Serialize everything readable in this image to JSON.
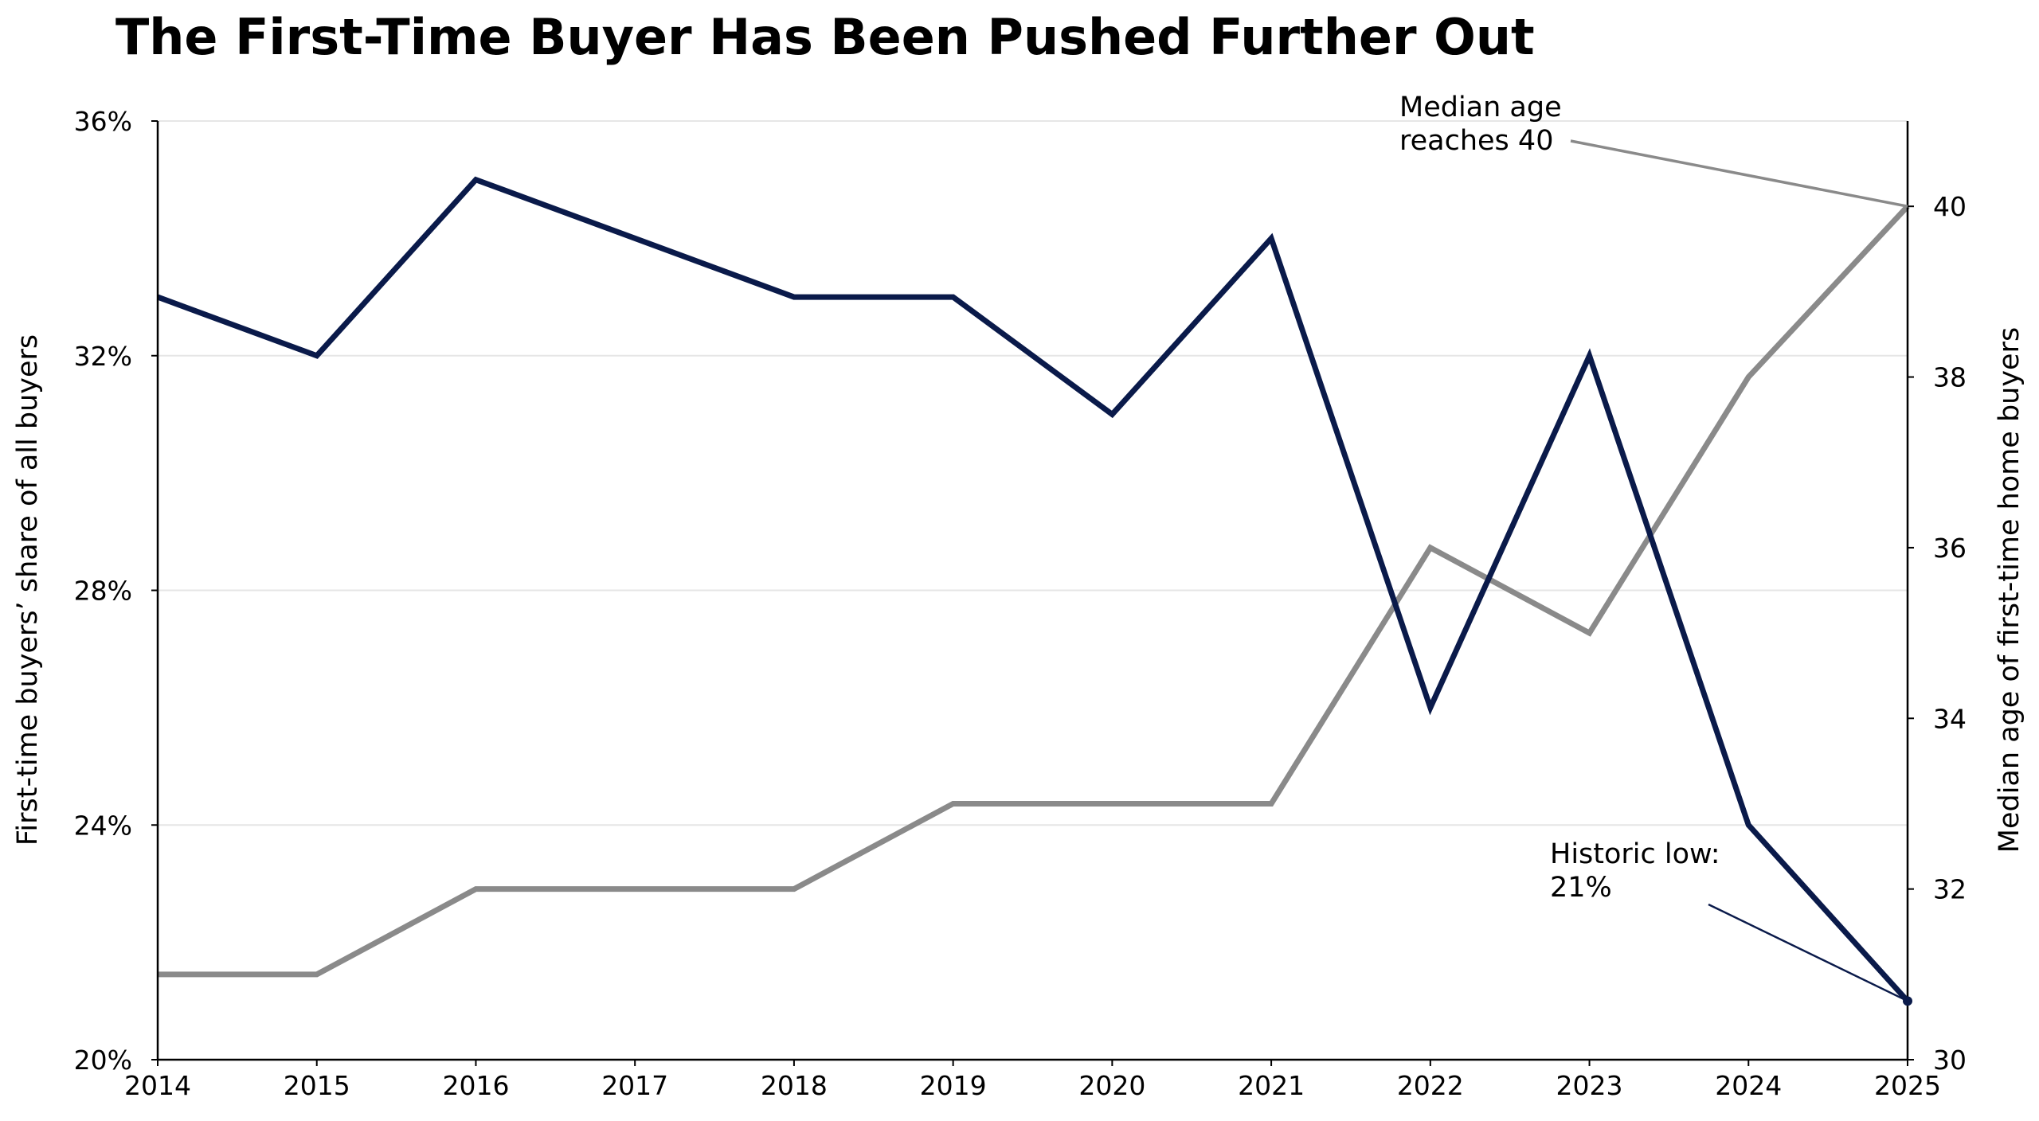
{
  "chart_data": {
    "type": "line",
    "title": "The First-Time Buyer Has Been Pushed Further Out",
    "x": [
      2014,
      2015,
      2016,
      2017,
      2018,
      2019,
      2020,
      2021,
      2022,
      2023,
      2024,
      2025
    ],
    "xlim": [
      2014,
      2025
    ],
    "x_ticks": [
      "2014",
      "2015",
      "2016",
      "2017",
      "2018",
      "2019",
      "2020",
      "2021",
      "2022",
      "2023",
      "2024",
      "2025"
    ],
    "ylabel_left": "First-time buyers’ share of all buyers",
    "ylabel_right": "Median age of first-time home buyers",
    "ylim_left": [
      20,
      36
    ],
    "ylim_right": [
      30,
      41
    ],
    "y_ticks_left": [
      "20%",
      "24%",
      "28%",
      "32%",
      "36%"
    ],
    "y_ticks_left_values": [
      20,
      24,
      28,
      32,
      36
    ],
    "y_ticks_right": [
      "30",
      "32",
      "34",
      "36",
      "38",
      "40"
    ],
    "y_ticks_right_values": [
      30,
      32,
      34,
      36,
      38,
      40
    ],
    "grid": "horizontal",
    "series": [
      {
        "axis": "left",
        "color": "#0a1a4a",
        "x": [
          2014,
          2015,
          2016,
          2018,
          2019,
          2020,
          2021,
          2022,
          2023,
          2024,
          2025
        ],
        "values": [
          33,
          32,
          35,
          33,
          33,
          31,
          34,
          26,
          32,
          24,
          21
        ]
      },
      {
        "axis": "right",
        "color": "#8a8a8a",
        "x": [
          2014,
          2015,
          2016,
          2018,
          2019,
          2021,
          2022,
          2023,
          2024,
          2025
        ],
        "values": [
          31,
          31,
          32,
          32,
          33,
          33,
          36,
          35,
          38,
          40
        ]
      }
    ],
    "annotations": [
      {
        "lines": [
          "Median age",
          "reaches 40"
        ],
        "target_x": 2025,
        "target_y": 40,
        "axis": "right",
        "color": "#8a8a8a"
      },
      {
        "lines": [
          "Historic low:",
          "21%"
        ],
        "target_x": 2025,
        "target_y": 21,
        "axis": "left",
        "color": "#0a1a4a"
      }
    ]
  }
}
